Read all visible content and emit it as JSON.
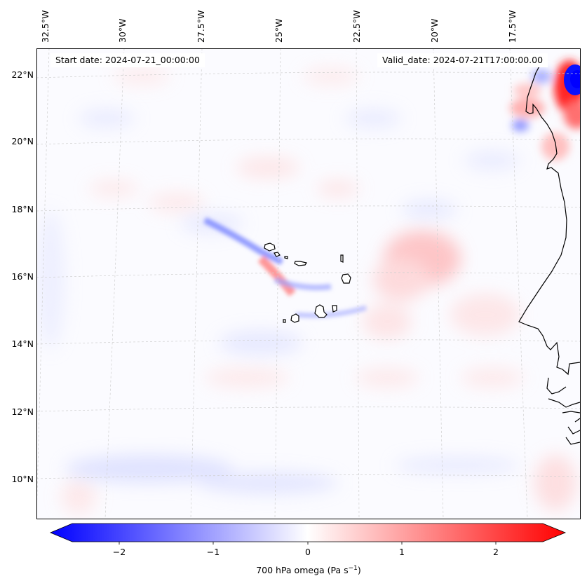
{
  "start_date": "Start date: 2024-07-21_00:00:00",
  "valid_date": "Valid_date: 2024-07-21T17:00:00.00",
  "lon_labels": [
    "32.5°W",
    "30°W",
    "27.5°W",
    "25°W",
    "22.5°W",
    "20°W",
    "17.5°W"
  ],
  "lat_labels": [
    "22°N",
    "20°N",
    "18°N",
    "16°N",
    "14°N",
    "12°N",
    "10°N"
  ],
  "colorbar": {
    "tick_labels": [
      "−2",
      "−1",
      "0",
      "1",
      "2"
    ],
    "tick_values": [
      -2,
      -1,
      0,
      1,
      2
    ],
    "range": [
      -2.5,
      2.5
    ],
    "label_prefix": "700 hPa omega (Pa s",
    "label_exp": "−1",
    "label_suffix": ")",
    "colors": {
      "negative": "#0000ff",
      "zero": "#ffffff",
      "positive": "#ff0000"
    }
  },
  "icons": [
    "coastline-icon",
    "island-icon"
  ]
}
